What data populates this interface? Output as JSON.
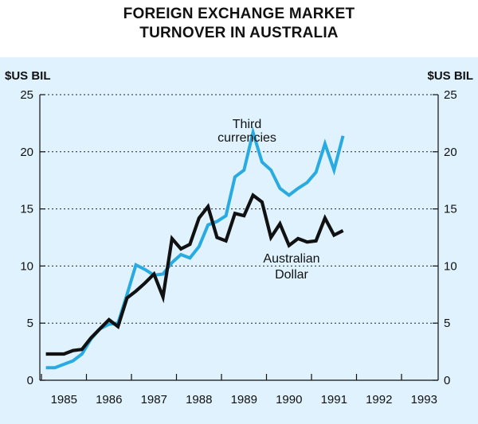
{
  "chart_data": {
    "type": "line",
    "title_lines": [
      "FOREIGN EXCHANGE MARKET",
      "TURNOVER IN AUSTRALIA"
    ],
    "ylabel_left": "$US BIL",
    "ylabel_right": "$US BIL",
    "ylim": [
      0,
      25
    ],
    "yticks": [
      0,
      5,
      10,
      15,
      20,
      25
    ],
    "xlim": [
      1984.5,
      1993
    ],
    "xticks": [
      "1985",
      "1986",
      "1987",
      "1988",
      "1989",
      "1990",
      "1991",
      "1992",
      "1993"
    ],
    "x_values": [
      1984.6,
      1984.8,
      1985.0,
      1985.2,
      1985.4,
      1985.6,
      1985.8,
      1986.0,
      1986.2,
      1986.4,
      1986.6,
      1986.8,
      1987.0,
      1987.2,
      1987.4,
      1987.6,
      1987.8,
      1988.0,
      1988.2,
      1988.4,
      1988.6,
      1988.8,
      1989.0,
      1989.2,
      1989.4,
      1989.6,
      1989.8,
      1990.0,
      1990.2,
      1990.4,
      1990.6,
      1990.8,
      1991.0,
      1991.2,
      1991.4,
      1991.6,
      1991.8,
      1992.0,
      1992.2,
      1992.4,
      1992.6
    ],
    "series": [
      {
        "name": "Third currencies",
        "label_lines": [
          "Third",
          "currencies"
        ],
        "color": "#29abe2",
        "values": [
          1.1,
          1.1,
          1.4,
          1.7,
          2.3,
          3.6,
          4.5,
          4.9,
          5.0,
          7.5,
          10.1,
          9.7,
          9.2,
          9.3,
          10.3,
          11.0,
          10.7,
          11.7,
          13.6,
          13.9,
          14.4,
          17.8,
          18.4,
          21.7,
          19.1,
          18.4,
          16.8,
          16.2,
          16.8,
          17.3,
          18.2,
          20.7,
          18.4,
          21.4,
          null,
          null,
          null,
          null,
          null,
          null,
          null
        ]
      },
      {
        "name": "Australian Dollar",
        "label_lines": [
          "Australian",
          "Dollar"
        ],
        "color": "#111111",
        "values": [
          2.3,
          2.3,
          2.3,
          2.6,
          2.7,
          3.7,
          4.5,
          5.3,
          4.7,
          7.2,
          7.8,
          8.5,
          9.3,
          7.3,
          12.4,
          11.5,
          11.9,
          14.2,
          15.2,
          12.5,
          12.2,
          14.6,
          14.4,
          16.2,
          15.6,
          12.5,
          13.7,
          11.8,
          12.4,
          12.1,
          12.2,
          14.2,
          12.7,
          13.1,
          null,
          null,
          null,
          null,
          null,
          null,
          null
        ]
      }
    ]
  }
}
